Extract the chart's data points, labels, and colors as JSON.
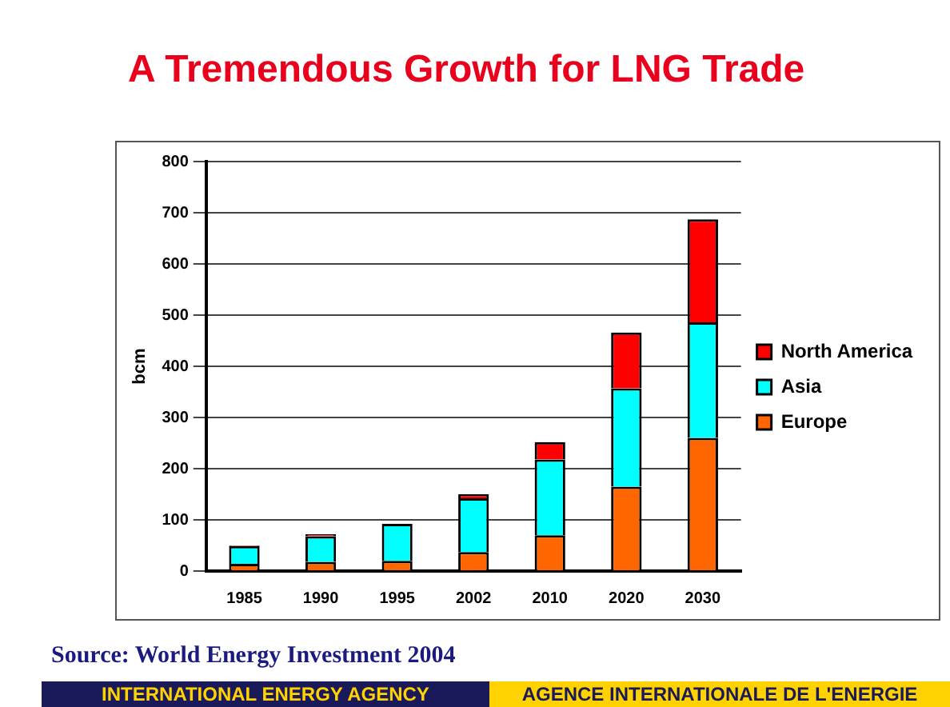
{
  "chart_data": {
    "type": "bar",
    "title": "A Tremendous Growth for LNG Trade",
    "ylabel": "bcm",
    "categories": [
      "1985",
      "1990",
      "1995",
      "2002",
      "2010",
      "2020",
      "2030"
    ],
    "series": [
      {
        "name": "Europe",
        "color": "#ff6600",
        "values": [
          14,
          18,
          20,
          37,
          70,
          165,
          260
        ]
      },
      {
        "name": "Asia",
        "color": "#00ffff",
        "values": [
          35,
          50,
          72,
          105,
          148,
          192,
          226
        ]
      },
      {
        "name": "North America",
        "color": "#ff0000",
        "values": [
          1,
          4,
          null,
          8,
          34,
          109,
          201
        ]
      }
    ],
    "stacked": true,
    "ylim": [
      0,
      800
    ],
    "yticks": [
      0,
      100,
      200,
      300,
      400,
      500,
      600,
      700,
      800
    ],
    "grid": "y",
    "legend": "right",
    "annotations": [
      "Source: World Energy Investment 2004",
      "INTERNATIONAL ENERGY AGENCY",
      "AGENCE INTERNATIONALE DE L'ENERGIE"
    ]
  }
}
